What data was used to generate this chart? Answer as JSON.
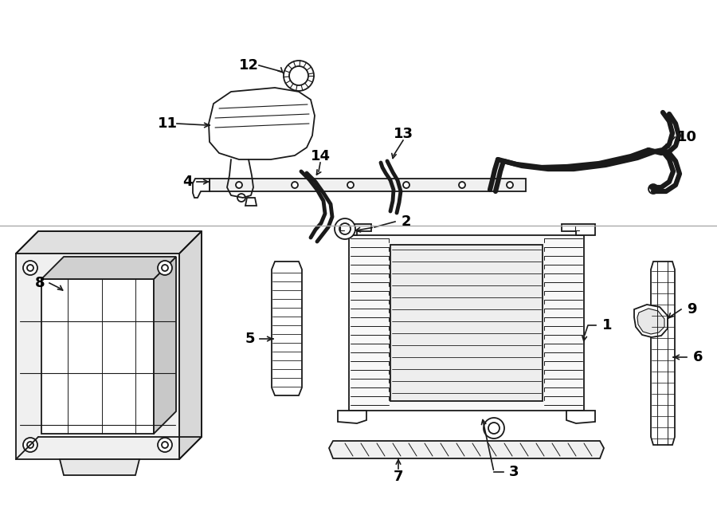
{
  "bg_color": "#ffffff",
  "line_color": "#1a1a1a",
  "label_fontsize": 13,
  "line_width": 1.3
}
